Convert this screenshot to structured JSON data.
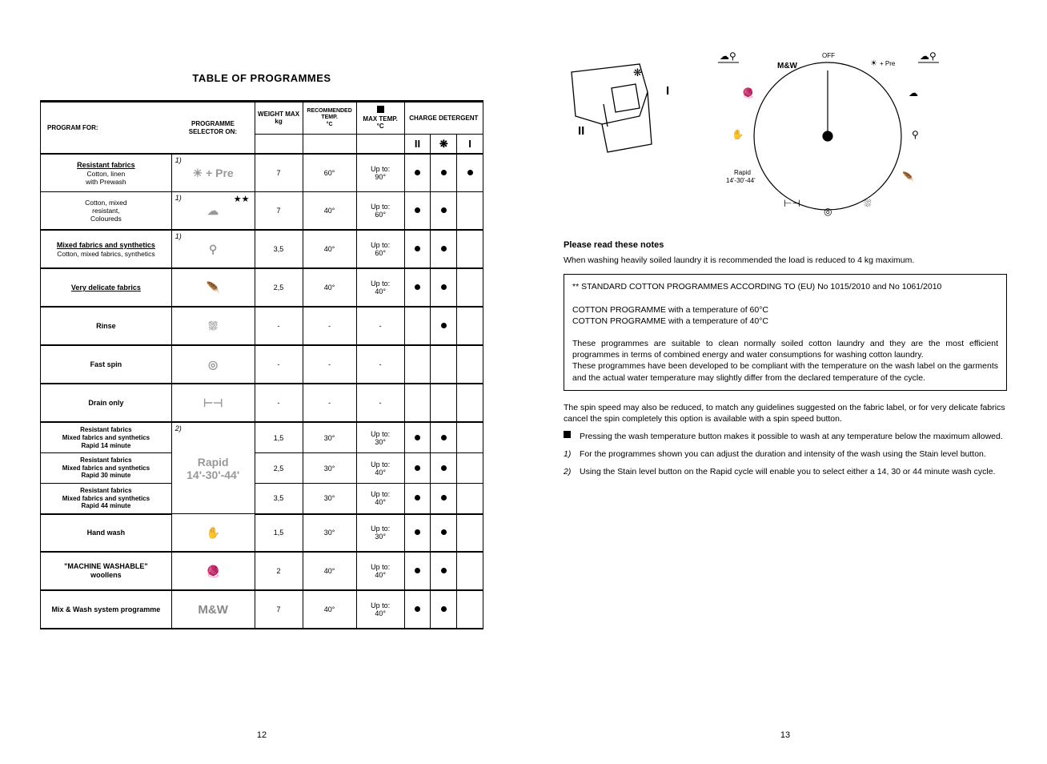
{
  "left": {
    "title": "TABLE OF PROGRAMMES",
    "page_num": "12",
    "headers": {
      "program_for": "PROGRAM FOR:",
      "selector": "PROGRAMME SELECTOR ON:",
      "weight": "WEIGHT MAX",
      "weight_unit": "kg",
      "rec_temp": "RECOMMENDED TEMP.",
      "rec_unit": "°C",
      "max_temp": "MAX TEMP.",
      "max_unit": "°C",
      "charge": "CHARGE DETERGENT",
      "d1": "II",
      "d2": "❋",
      "d3": "I"
    },
    "rows": [
      {
        "name_html": "<span class='under'>Resistant fabrics</span><span class='sub'>Cotton, linen<br>with Prewash</span>",
        "note": "1)",
        "icon": "☀ + Pre",
        "w": "7",
        "rt": "60°",
        "mt": "Up to:<br>90°",
        "d": [
          true,
          true,
          true
        ],
        "thick_top": true
      },
      {
        "name_html": "<span class='sub'>Cotton, mixed<br>resistant,<br>Coloureds</span>",
        "note": "1)",
        "stars": "★★",
        "icon": "☁",
        "w": "7",
        "rt": "40°",
        "mt": "Up to:<br>60°",
        "d": [
          true,
          true,
          false
        ]
      },
      {
        "name_html": "<span class='under'>Mixed fabrics and synthetics</span><span class='sub'>Cotton, mixed fabrics, synthetics</span>",
        "note": "1)",
        "icon": "⚲",
        "w": "3,5",
        "rt": "40°",
        "mt": "Up to:<br>60°",
        "d": [
          true,
          true,
          false
        ],
        "thick_top": true
      },
      {
        "name_html": "<span class='under'>Very delicate fabrics</span>",
        "icon": "🪶",
        "w": "2,5",
        "rt": "40°",
        "mt": "Up to:<br>40°",
        "d": [
          true,
          true,
          false
        ],
        "thick_top": true
      },
      {
        "name_html": "Rinse",
        "icon": "⛆",
        "w": "-",
        "rt": "-",
        "mt": "-",
        "d": [
          false,
          true,
          false
        ],
        "thick_top": true
      },
      {
        "name_html": "Fast spin",
        "icon": "◎",
        "w": "-",
        "rt": "-",
        "mt": "-",
        "d": [
          false,
          false,
          false
        ],
        "thick_top": true
      },
      {
        "name_html": "Drain only",
        "icon": "⊢⊣",
        "w": "-",
        "rt": "-",
        "mt": "-",
        "d": [
          false,
          false,
          false
        ],
        "thick_top": true,
        "thick_bottom": true
      },
      {
        "name_html": "Resistant fabrics<br>Mixed fabrics and synthetics<br>Rapid 14 minute",
        "note": "2)",
        "icon_rowspan": 3,
        "icon": "Rapid<br>14'-30'-44'",
        "w": "1,5",
        "rt": "30°",
        "mt": "Up to:<br>30°",
        "d": [
          true,
          true,
          false
        ],
        "small": true
      },
      {
        "name_html": "Resistant fabrics<br>Mixed fabrics and synthetics<br>Rapid 30 minute",
        "w": "2,5",
        "rt": "30°",
        "mt": "Up to:<br>40°",
        "d": [
          true,
          true,
          false
        ],
        "small": true
      },
      {
        "name_html": "Resistant fabrics<br>Mixed fabrics and synthetics<br>Rapid 44 minute",
        "w": "3,5",
        "rt": "30°",
        "mt": "Up to:<br>40°",
        "d": [
          true,
          true,
          false
        ],
        "small": true,
        "thick_bottom": true
      },
      {
        "name_html": "Hand wash",
        "icon": "✋",
        "w": "1,5",
        "rt": "30°",
        "mt": "Up to:<br>30°",
        "d": [
          true,
          true,
          false
        ]
      },
      {
        "name_html": "\"MACHINE WASHABLE\"<br>woollens",
        "icon": "🧶",
        "w": "2",
        "rt": "40°",
        "mt": "Up to:<br>40°",
        "d": [
          true,
          true,
          false
        ],
        "thick_top": true
      },
      {
        "name_html": "Mix & Wash system programme",
        "icon": "M&W",
        "icon_bold": true,
        "w": "7",
        "rt": "40°",
        "mt": "Up to:<br>40°",
        "d": [
          true,
          true,
          false
        ],
        "thick_top": true,
        "thick_bottom": true
      }
    ]
  },
  "right": {
    "page_num": "13",
    "notes_heading": "Please read these notes",
    "intro": "When washing heavily soiled laundry it is recommended the load is reduced to 4 kg maximum.",
    "box": {
      "l1": "** STANDARD COTTON PROGRAMMES ACCORDING TO (EU) No 1015/2010 and No 1061/2010",
      "l2": "COTTON PROGRAMME with  a temperature of 60°C",
      "l3": "COTTON PROGRAMME with a temperature of 40°C",
      "l4": "These programmes are suitable to clean normally soiled cotton laundry and they are the most efficient programmes in terms of combined energy and water consumptions for washing cotton laundry.",
      "l5": "These programmes have been developed to be compliant with the temperature on the wash label on the garments and the actual water temperature may slightly differ from the declared temperature of the cycle."
    },
    "spin_note": "The spin speed may also be reduced, to match any guidelines suggested on the fabric label, or for very delicate fabrics cancel the spin completely this option is available with a spin speed button.",
    "bullet": "Pressing the wash temperature button makes it possible to wash at any temperature below the maximum allowed.",
    "n1_marker": "1)",
    "n1": "For the programmes shown you can adjust the duration and intensity of the wash using the Stain level button.",
    "n2_marker": "2)",
    "n2": "Using the Stain level button on the Rapid cycle will enable you to select either a 14, 30 or 44 minute wash cycle.",
    "dial": {
      "off": "OFF",
      "mw": "M&W",
      "pre": "+ Pre",
      "rapid": "Rapid",
      "rapid2": "14'-30'-44'"
    }
  }
}
